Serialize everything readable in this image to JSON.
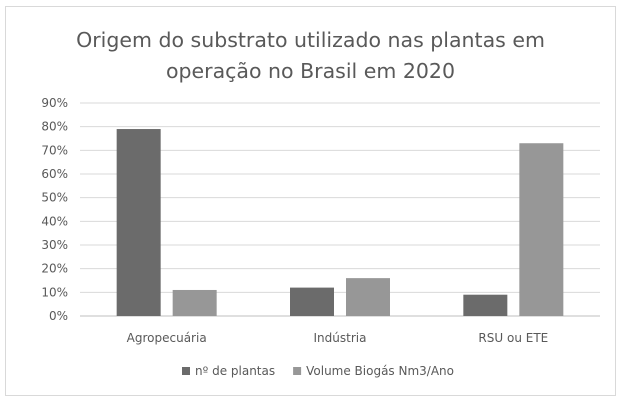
{
  "chart_data": {
    "type": "bar",
    "title_lines": [
      "Origem do substrato utilizado nas plantas em",
      "operação no Brasil em 2020"
    ],
    "categories": [
      "Agropecuária",
      "Indústria",
      "RSU ou ETE"
    ],
    "series": [
      {
        "name": "nº de plantas",
        "values": [
          79,
          12,
          9
        ],
        "color": "#6b6b6b"
      },
      {
        "name": "Volume Biogás Nm3/Ano",
        "values": [
          11,
          16,
          73
        ],
        "color": "#979797"
      }
    ],
    "ylim": [
      0,
      90
    ],
    "ytick_step": 10,
    "ytick_suffix": "%",
    "grid": true,
    "legend_position": "bottom"
  }
}
